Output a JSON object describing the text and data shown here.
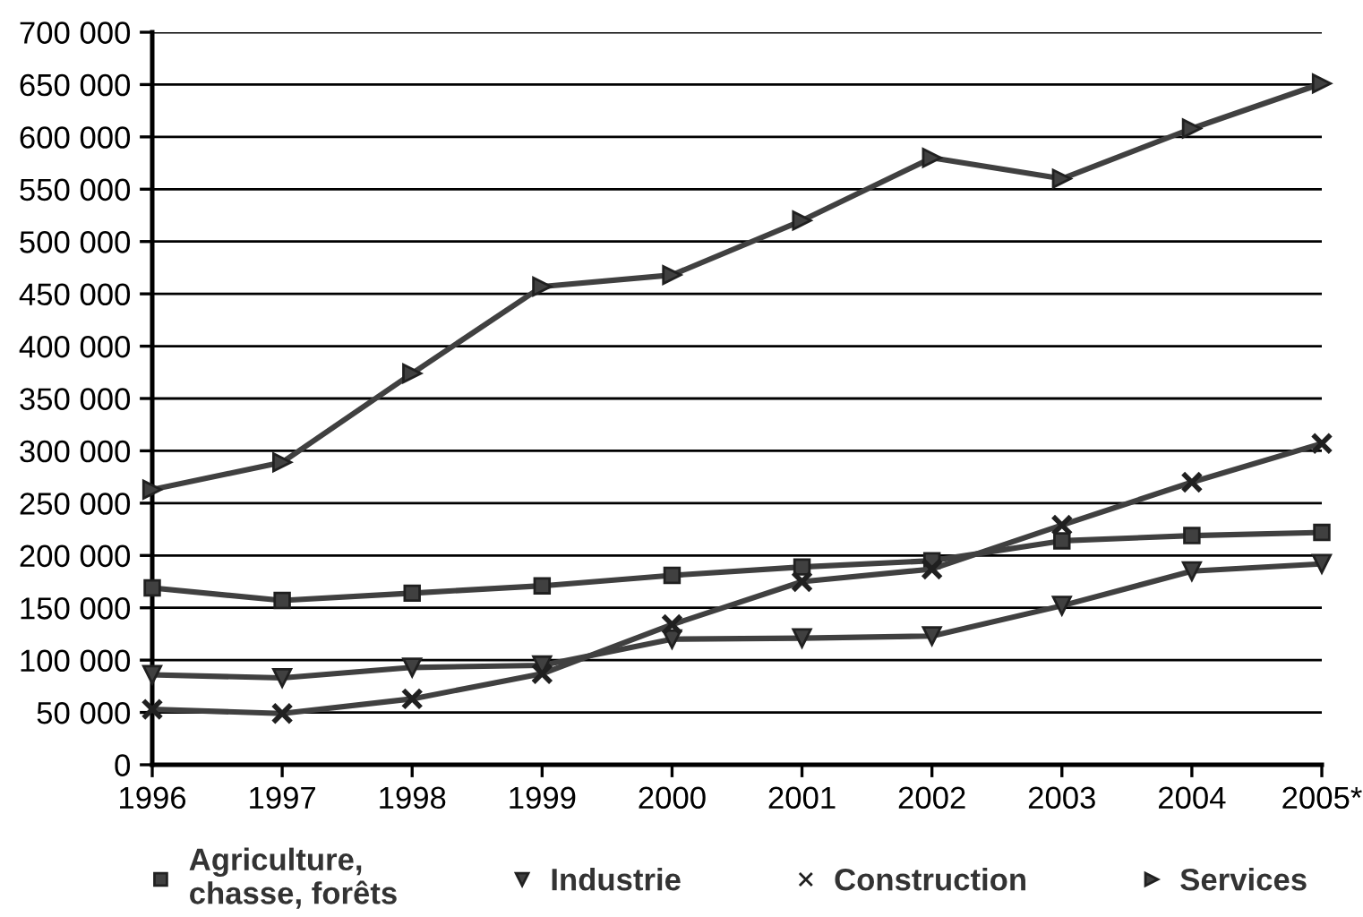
{
  "chart_data": {
    "type": "line",
    "categories": [
      "1996",
      "1997",
      "1998",
      "1999",
      "2000",
      "2001",
      "2002",
      "2003",
      "2004",
      "2005*"
    ],
    "series": [
      {
        "name": "Agriculture,\nchasse, forêts",
        "color": "#404040",
        "marker": "square",
        "values": [
          169000,
          157000,
          164000,
          171000,
          181000,
          189000,
          195000,
          214000,
          219000,
          222000
        ]
      },
      {
        "name": "Industrie",
        "color": "#404040",
        "marker": "triangle_down",
        "values": [
          86000,
          83000,
          93000,
          95000,
          120000,
          121000,
          123000,
          152000,
          185000,
          192000
        ]
      },
      {
        "name": "Construction",
        "color": "#404040",
        "marker": "cross",
        "values": [
          53000,
          49000,
          63000,
          87000,
          134000,
          175000,
          187000,
          229000,
          270000,
          307000
        ]
      },
      {
        "name": "Services",
        "color": "#404040",
        "marker": "triangle_right",
        "values": [
          263000,
          289000,
          374000,
          457000,
          468000,
          520000,
          580000,
          560000,
          608000,
          651000
        ]
      }
    ],
    "ylim": [
      0,
      700000
    ],
    "yticks": [
      {
        "value": 0,
        "label": "0"
      },
      {
        "value": 50000,
        "label": "50 000"
      },
      {
        "value": 100000,
        "label": "100 000"
      },
      {
        "value": 150000,
        "label": "150 000"
      },
      {
        "value": 200000,
        "label": "200 000"
      },
      {
        "value": 250000,
        "label": "250 000"
      },
      {
        "value": 300000,
        "label": "300 000"
      },
      {
        "value": 350000,
        "label": "350 000"
      },
      {
        "value": 400000,
        "label": "400 000"
      },
      {
        "value": 450000,
        "label": "450 000"
      },
      {
        "value": 500000,
        "label": "500 000"
      },
      {
        "value": 550000,
        "label": "550 000"
      },
      {
        "value": 600000,
        "label": "600 000"
      },
      {
        "value": 650000,
        "label": "650 000"
      },
      {
        "value": 700000,
        "label": "700 000"
      }
    ],
    "grid": "y",
    "legend": "bottom",
    "line_style": "solid"
  }
}
